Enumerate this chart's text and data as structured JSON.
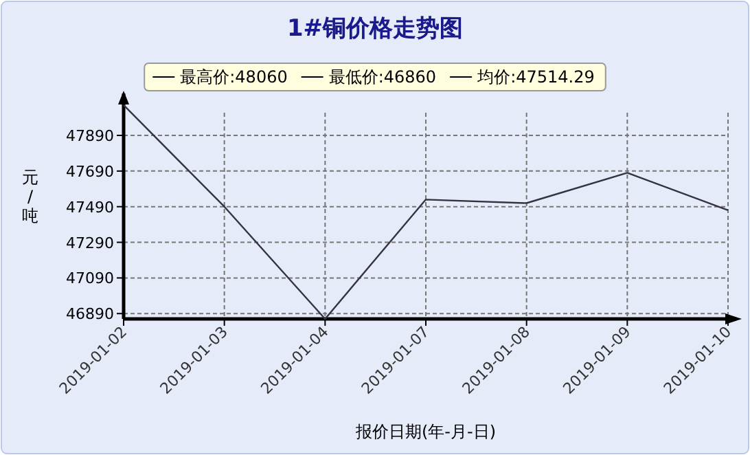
{
  "chart_data": {
    "type": "line",
    "title": "1#铜价格走势图",
    "xlabel": "报价日期(年-月-日)",
    "ylabel": "元/吨",
    "categories": [
      "2019-01-02",
      "2019-01-03",
      "2019-01-04",
      "2019-01-07",
      "2019-01-08",
      "2019-01-09",
      "2019-01-10"
    ],
    "series": [
      {
        "color": "#333344",
        "values": [
          48060,
          47490,
          46860,
          47530,
          47510,
          47680,
          47470
        ]
      }
    ],
    "ylim": [
      46860,
      48110
    ],
    "yticks": [
      46890,
      47090,
      47290,
      47490,
      47690,
      47890
    ],
    "grid": true,
    "annotations": [
      "最高价:48060",
      "最低价:46860",
      "均价:47514.29"
    ]
  }
}
